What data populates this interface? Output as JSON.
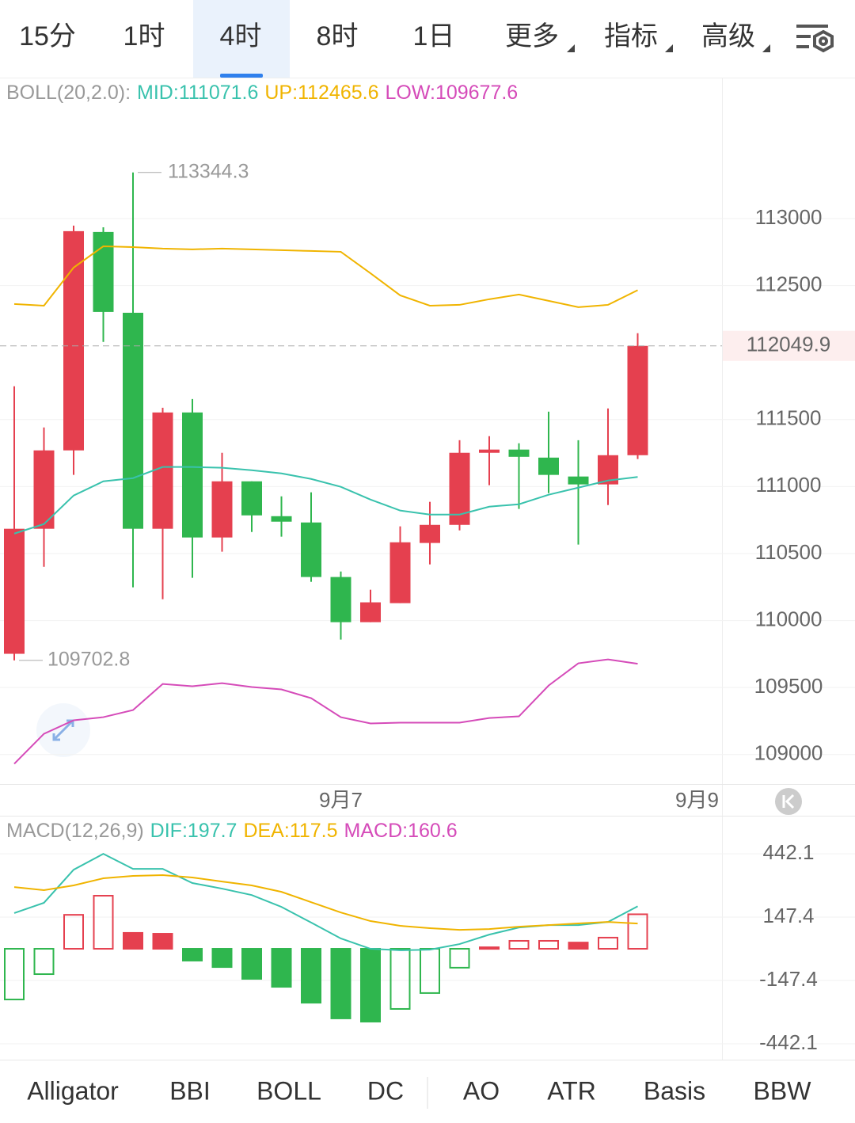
{
  "top_tabs": {
    "items": [
      "15分",
      "1时",
      "4时",
      "8时",
      "1日",
      "更多",
      "指标",
      "高级"
    ],
    "active": 2
  },
  "chart_data": [
    {
      "type": "candlestick",
      "title": "BOLL(20,2.0):",
      "categories": [
        null,
        null,
        null,
        null,
        null,
        null,
        null,
        null,
        null,
        null,
        null,
        "9月7",
        null,
        null,
        null,
        null,
        null,
        null,
        null,
        null,
        null,
        null,
        null,
        "9月9"
      ],
      "open": [
        109752,
        110685,
        111270,
        112900,
        112297,
        110685,
        111553,
        110620,
        111039,
        110779,
        110732,
        110325,
        109988,
        110130,
        110579,
        110714,
        111252,
        111276,
        111216,
        111075,
        111016,
        111234,
        null,
        null
      ],
      "high": [
        111748,
        111441,
        112947,
        112935,
        113344.3,
        111588,
        111653,
        111252,
        111039,
        110927,
        110957,
        110366,
        110230,
        110703,
        110886,
        111346,
        111376,
        111323,
        111559,
        111346,
        111583,
        112144,
        null,
        null
      ],
      "low": [
        109702.8,
        110401,
        111087,
        112079,
        110248,
        110159,
        110319,
        110514,
        110661,
        110626,
        110289,
        109858,
        109988,
        110130,
        110419,
        110673,
        111010,
        110833,
        110951,
        110567,
        110862,
        111205,
        null,
        null
      ],
      "close": [
        110685,
        111270,
        112906,
        112303,
        110685,
        111553,
        110620,
        111039,
        110785,
        110738,
        110325,
        109988,
        110136,
        110584,
        110714,
        111252,
        111276,
        111222,
        111087,
        111016,
        111234,
        112049.9,
        null,
        null
      ],
      "up_color": "#e5404f",
      "down_color": "#2fb64e",
      "series": [
        {
          "name": "MID:",
          "color": "#39c2ad",
          "values": [
            110649,
            110720,
            110933,
            111039,
            111063,
            111146,
            111146,
            111140,
            111122,
            111098,
            111057,
            110998,
            110903,
            110821,
            110791,
            110791,
            110850,
            110868,
            110939,
            110992,
            111045,
            111071.6,
            null,
            null
          ]
        },
        {
          "name": "UP:",
          "color": "#f0b400",
          "values": [
            112362,
            112350,
            112634,
            112793,
            112787,
            112776,
            112770,
            112776,
            112770,
            112764,
            112758,
            112752,
            112592,
            112427,
            112350,
            112356,
            112398,
            112433,
            112386,
            112339,
            112356,
            112465.6,
            null,
            null
          ]
        },
        {
          "name": "LOW:",
          "color": "#d54bb9",
          "values": [
            108931,
            109155,
            109256,
            109279,
            109332,
            109527,
            109510,
            109533,
            109504,
            109486,
            109421,
            109279,
            109232,
            109238,
            109238,
            109238,
            109273,
            109285,
            109515,
            109681,
            109710,
            109677.6,
            null,
            null
          ]
        }
      ],
      "ylim": [
        108780,
        114040
      ],
      "yticks": [
        109000,
        109500,
        110000,
        110500,
        111000,
        111500,
        112500,
        113000
      ],
      "grid": true
    },
    {
      "type": "macd",
      "title": "MACD(12,26,9)",
      "series": [
        {
          "name": "DIF:",
          "color": "#39c2ad",
          "values": [
            166,
            214,
            368,
            442,
            372,
            372,
            306,
            280,
            250,
            195,
            122,
            48,
            0,
            -7,
            -4,
            22,
            66,
            99,
            110,
            110,
            125,
            197.7,
            null,
            null
          ]
        },
        {
          "name": "DEA:",
          "color": "#f0b400",
          "values": [
            287,
            273,
            295,
            328,
            339,
            343,
            332,
            313,
            295,
            265,
            217,
            169,
            129,
            107,
            96,
            88,
            92,
            103,
            110,
            118,
            125,
            117.5,
            null,
            null
          ]
        },
        {
          "name": "MACD:",
          "color": "#d54bb9",
          "values": [
            -236,
            -118,
            158,
            247,
            74,
            70,
            -55,
            -85,
            -140,
            -177,
            -251,
            -324,
            -339,
            -280,
            -206,
            -88,
            7,
            37,
            37,
            29,
            52,
            160.6,
            null,
            null
          ]
        }
      ],
      "ylim": [
        -516,
        612
      ],
      "yticks": [
        -442.1,
        -147.4,
        147.4,
        442.1
      ],
      "grid": true
    }
  ],
  "bottom_tabs": {
    "items": [
      "Alligator",
      "BBI",
      "BOLL",
      "DC",
      "AO",
      "ATR",
      "Basis",
      "BBW"
    ],
    "active": 2
  }
}
